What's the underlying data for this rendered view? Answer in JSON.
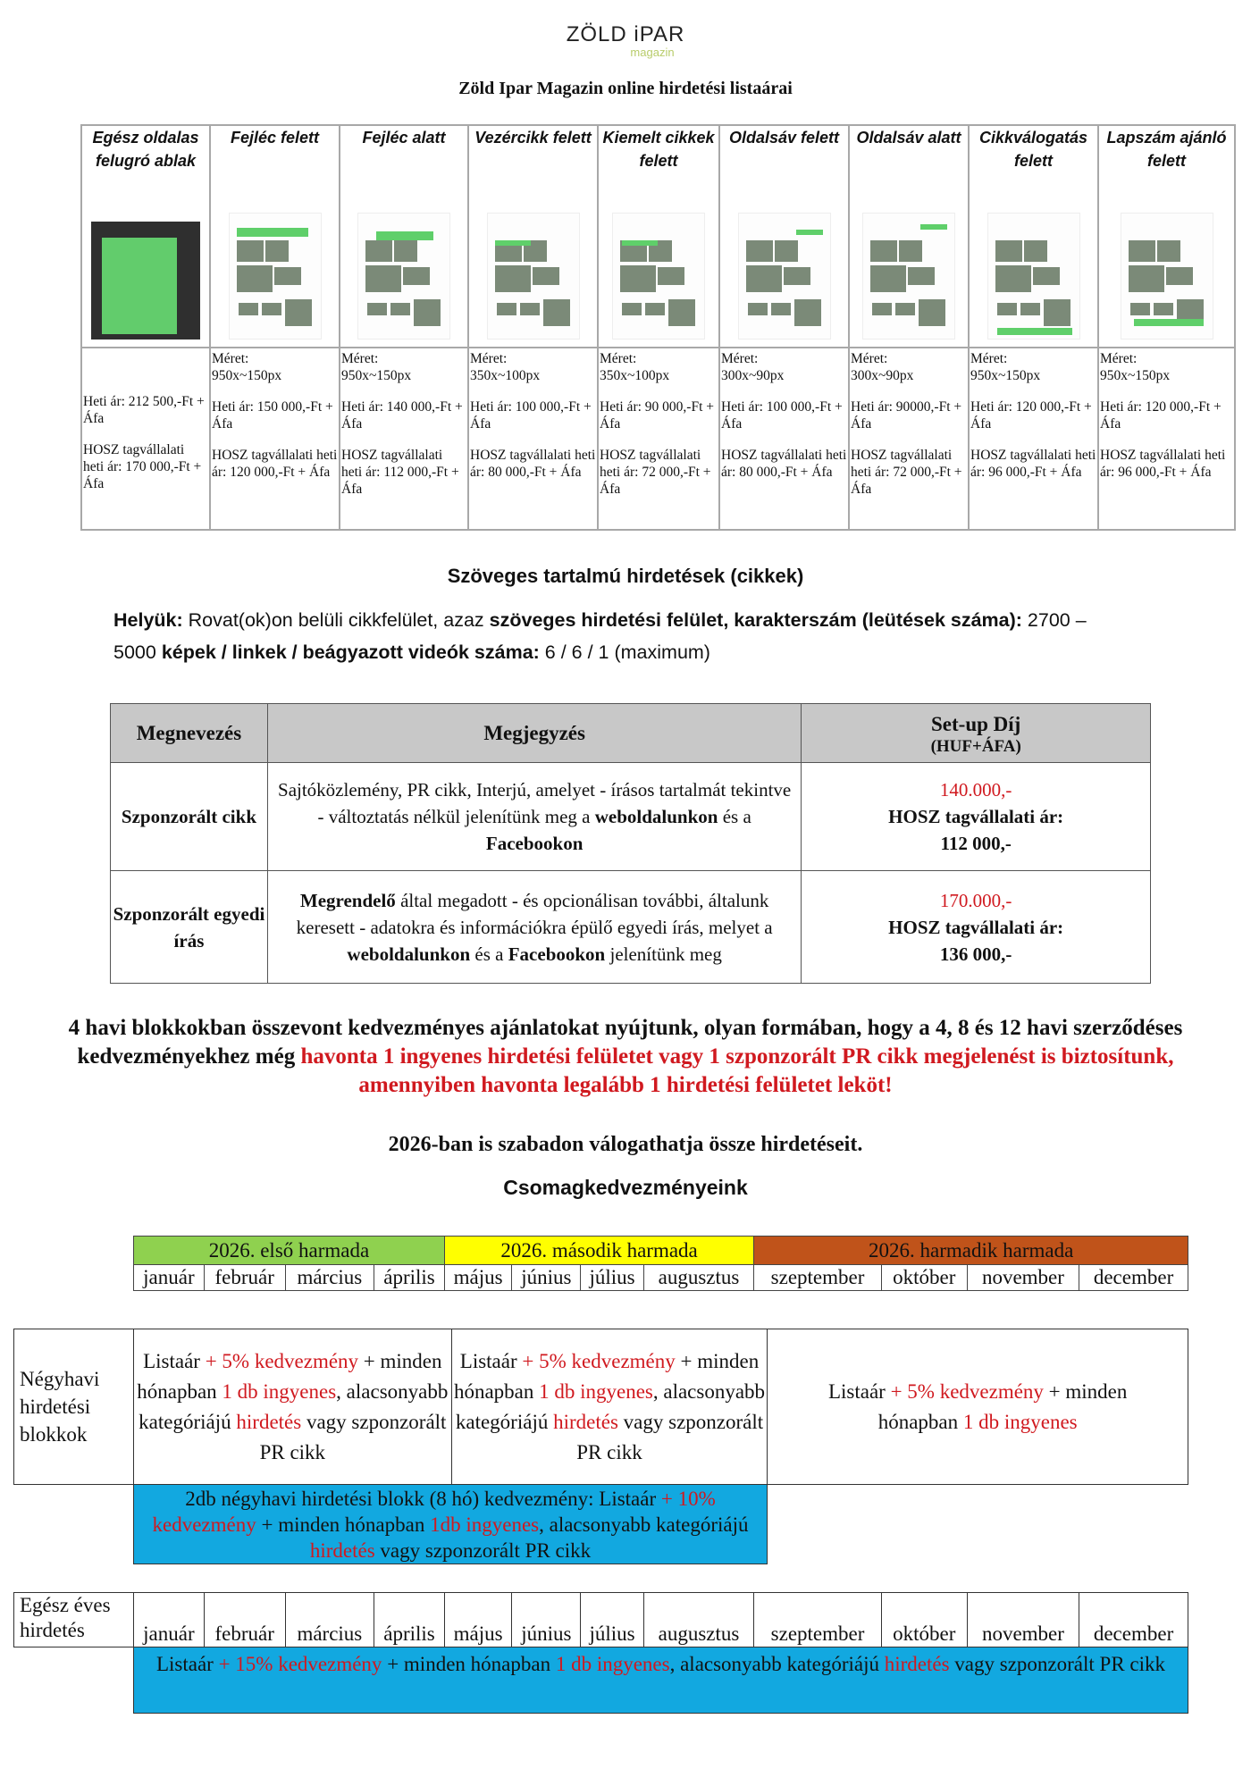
{
  "logo": {
    "main": "ZÖLD iPAR",
    "sub": "magazin"
  },
  "title": "Zöld Ipar Magazin online hirdetési listaárai",
  "ads": [
    {
      "name": "Egész oldalas felugró ablak",
      "size_label": "",
      "size": "",
      "price": "Heti ár: 212 500,-Ft + Áfa",
      "hosz": "HOSZ tagvállalati heti ár: 170 000,-Ft + Áfa",
      "thumb": "popup"
    },
    {
      "name": "Fejléc felett",
      "size_label": "Méret:",
      "size": "950x~150px",
      "price": "Heti ár: 150 000,-Ft + Áfa",
      "hosz": "HOSZ tagvállalati heti ár: 120 000,-Ft + Áfa",
      "thumb": "top"
    },
    {
      "name": "Fejléc alatt",
      "size_label": "Méret:",
      "size": "950x~150px",
      "price": "Heti ár: 140 000,-Ft + Áfa",
      "hosz": "HOSZ tagvállalati heti ár: 112 000,-Ft + Áfa",
      "thumb": "under-header"
    },
    {
      "name": "Vezércikk felett",
      "size_label": "Méret:",
      "size": "350x~100px",
      "price": "Heti ár: 100 000,-Ft + Áfa",
      "hosz": "HOSZ tagvállalati heti ár: 80 000,-Ft + Áfa",
      "thumb": "lead"
    },
    {
      "name": "Kiemelt cikkek felett",
      "size_label": "Méret:",
      "size": "350x~100px",
      "price": "Heti ár: 90 000,-Ft + Áfa",
      "hosz": "HOSZ tagvállalati heti ár: 72 000,-Ft + Áfa",
      "thumb": "featured"
    },
    {
      "name": "Oldalsáv felett",
      "size_label": "Méret:",
      "size": "300x~90px",
      "price": "Heti ár: 100 000,-Ft + Áfa",
      "hosz": "HOSZ tagvállalati heti ár: 80 000,-Ft + Áfa",
      "thumb": "sidebar-top"
    },
    {
      "name": "Oldalsáv alatt",
      "size_label": "Méret:",
      "size": "300x~90px",
      "price": "Heti ár: 90000,-Ft + Áfa",
      "hosz": "HOSZ tagvállalati heti ár: 72 000,-Ft + Áfa",
      "thumb": "sidebar-bottom"
    },
    {
      "name": "Cikkválogatás felett",
      "size_label": "Méret:",
      "size": "950x~150px",
      "price": "Heti ár: 120 000,-Ft + Áfa",
      "hosz": "HOSZ tagvállalati heti ár: 96 000,-Ft + Áfa",
      "thumb": "selection"
    },
    {
      "name": "Lapszám ajánló felett",
      "size_label": "Méret:",
      "size": "950x~150px",
      "price": "Heti ár: 120 000,-Ft + Áfa",
      "hosz": "HOSZ tagvállalati heti ár: 96 000,-Ft + Áfa",
      "thumb": "issue"
    }
  ],
  "text_ads": {
    "title": "Szöveges tartalmú hirdetések (cikkek)",
    "placement": [
      {
        "t": "Helyük: ",
        "b": true
      },
      {
        "t": "Rovat(ok)on belüli cikkfelület, azaz ",
        "b": false
      },
      {
        "t": "szöveges hirdetési felület, karakterszám (leütések száma): ",
        "b": true
      },
      {
        "t": "2700 – 5000 ",
        "b": false
      },
      {
        "t": "képek / linkek / beágyazott videók száma: ",
        "b": true
      },
      {
        "t": "6 / 6 / 1 (maximum)",
        "b": false
      }
    ]
  },
  "pricing": {
    "headers": {
      "name": "Megnevezés",
      "note": "Megjegyzés",
      "fee": "Set-up Díj",
      "fee_unit": "(HUF+ÁFA)"
    },
    "rows": [
      {
        "name": "Szponzorált cikk",
        "note": [
          {
            "t": "Sajtóközlemény, PR cikk, Interjú, amelyet - írásos tartalmát tekintve - változtatás nélkül jelenítünk meg a "
          },
          {
            "t": "weboldalunkon",
            "b": true
          },
          {
            "t": " és a "
          },
          {
            "t": "Facebookon",
            "b": true
          }
        ],
        "price": "140.000,-",
        "hosz_label": "HOSZ tagvállalati ár:",
        "hosz_price": "112 000,-"
      },
      {
        "name": "Szponzorált egyedi írás",
        "note": [
          {
            "t": "Megrendelő",
            "b": true
          },
          {
            "t": " által megadott - és opcionálisan további, általunk keresett - adatokra és információkra épülő egyedi írás, melyet a "
          },
          {
            "t": "weboldalunkon",
            "b": true
          },
          {
            "t": " és a "
          },
          {
            "t": "Facebookon",
            "b": true
          },
          {
            "t": " jelenítünk meg"
          }
        ],
        "price": "170.000,-",
        "hosz_label": "HOSZ tagvállalati ár:",
        "hosz_price": "136 000,-"
      }
    ]
  },
  "offer_paragraph": [
    {
      "t": "4 havi blokkokban összevont kedvezményes ajánlatokat nyújtunk, olyan formában, hogy a 4, 8 és 12 havi szerződéses kedvezményekhez még "
    },
    {
      "t": "havonta 1 ingyenes hirdetési felületet vagy 1 szponzorált PR cikk megjelenést is biztosítunk, amennyiben havonta legalább 1 hirdetési felületet leköt!",
      "r": true
    }
  ],
  "free_line": "2026-ban is szabadon válogathatja össze hirdetéseit.",
  "packages_title": "Csomagkedvezményeink",
  "colors": {
    "first": "#8fd14f",
    "second": "#ffff00",
    "third": "#c0531a",
    "blue": "#12a8e0",
    "red": "#d0191f"
  },
  "thirds": [
    "2026. első harmada",
    "2026. második harmada",
    "2026. harmadik harmada"
  ],
  "months": [
    "január",
    "február",
    "március",
    "április",
    "május",
    "június",
    "július",
    "augusztus",
    "szeptember",
    "október",
    "november",
    "december"
  ],
  "quarterly": {
    "label": "Négyhavi hirdetési blokkok",
    "block": [
      {
        "t": "Listaár "
      },
      {
        "t": "+ 5% kedvezmény",
        "r": true
      },
      {
        "t": " + minden hónapban "
      },
      {
        "t": "1 db ingyenes",
        "r": true
      },
      {
        "t": ", alacsonyabb kategóriájú "
      },
      {
        "t": "hirdetés",
        "r": true
      },
      {
        "t": " vagy szponzorált PR cikk"
      }
    ],
    "block3": [
      {
        "t": "Listaár "
      },
      {
        "t": "+ 5% kedvezmény",
        "r": true
      },
      {
        "t": " + minden hónapban "
      },
      {
        "t": "1 db ingyenes",
        "r": true
      }
    ],
    "double": [
      {
        "t": "2db négyhavi hirdetési blokk (8 hó) kedvezmény: Listaár "
      },
      {
        "t": "+ 10% kedvezmény",
        "r": true
      },
      {
        "t": " + minden hónapban "
      },
      {
        "t": "1db ingyenes",
        "r": true
      },
      {
        "t": ", alacsonyabb kategóriájú "
      },
      {
        "t": "hirdetés",
        "r": true
      },
      {
        "t": " vagy szponzorált PR cikk"
      }
    ]
  },
  "yearly": {
    "label": "Egész éves hirdetés",
    "offer": [
      {
        "t": "Listaár "
      },
      {
        "t": "+ 15% kedvezmény",
        "r": true
      },
      {
        "t": " + minden hónapban "
      },
      {
        "t": "1 db ingyenes",
        "r": true
      },
      {
        "t": ", alacsonyabb kategóriájú "
      },
      {
        "t": "hirdetés",
        "r": true
      },
      {
        "t": " vagy szponzorált PR cikk"
      }
    ]
  }
}
